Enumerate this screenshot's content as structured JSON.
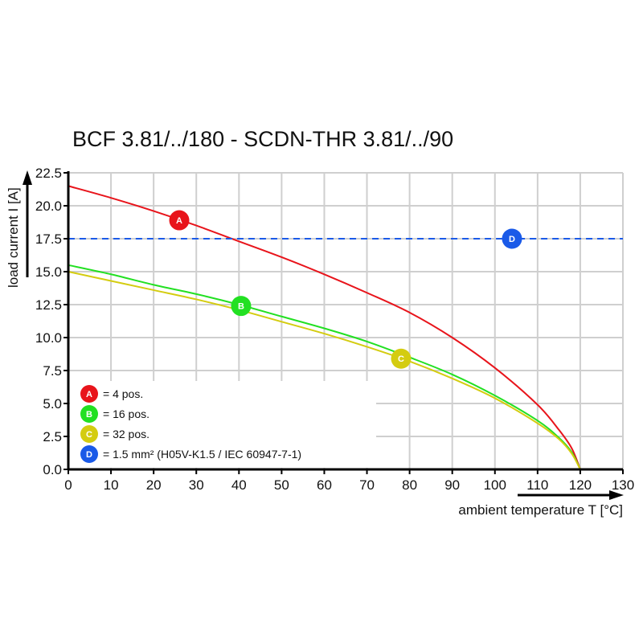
{
  "chart_data": {
    "type": "line",
    "title": "BCF 3.81/../180 - SCDN-THR 3.81/../90",
    "xlabel": "ambient temperature T [°C]",
    "ylabel": "load current I [A]",
    "xlim": [
      0,
      130
    ],
    "ylim": [
      0,
      22.5
    ],
    "xticks": [
      "0",
      "10",
      "20",
      "30",
      "40",
      "50",
      "60",
      "70",
      "80",
      "90",
      "100",
      "110",
      "120",
      "130"
    ],
    "yticks": [
      "0.0",
      "2.5",
      "5.0",
      "7.5",
      "10.0",
      "12.5",
      "15.0",
      "17.5",
      "20.0",
      "22.5"
    ],
    "grid": true,
    "legend_placement": "bottom-left",
    "series": [
      {
        "marker": "A",
        "name": "= 4 pos.",
        "color": "#e8141b",
        "dashed": false,
        "x": [
          0,
          10,
          20,
          30,
          40,
          50,
          60,
          70,
          80,
          90,
          100,
          110,
          115,
          118,
          120
        ],
        "y": [
          21.5,
          20.6,
          19.6,
          18.5,
          17.3,
          16.1,
          14.8,
          13.4,
          11.9,
          10.0,
          7.7,
          4.9,
          3.0,
          1.6,
          0
        ],
        "label_at": [
          26,
          18.9
        ]
      },
      {
        "marker": "B",
        "name": "= 16 pos.",
        "color": "#22e022",
        "dashed": false,
        "x": [
          0,
          10,
          20,
          30,
          40,
          50,
          60,
          70,
          80,
          90,
          100,
          110,
          115,
          118,
          120
        ],
        "y": [
          15.5,
          14.8,
          14.0,
          13.3,
          12.5,
          11.6,
          10.7,
          9.7,
          8.5,
          7.2,
          5.6,
          3.7,
          2.4,
          1.3,
          0
        ],
        "label_at": [
          40.5,
          12.4
        ]
      },
      {
        "marker": "C",
        "name": "= 32 pos.",
        "color": "#d4cc10",
        "dashed": false,
        "x": [
          0,
          10,
          20,
          30,
          40,
          50,
          60,
          70,
          80,
          90,
          100,
          110,
          115,
          118,
          120
        ],
        "y": [
          15.0,
          14.3,
          13.6,
          12.9,
          12.1,
          11.2,
          10.3,
          9.3,
          8.2,
          6.9,
          5.4,
          3.5,
          2.3,
          1.2,
          0
        ],
        "label_at": [
          78,
          8.4
        ]
      },
      {
        "marker": "D",
        "name": "= 1.5 mm² (H05V-K1.5 / IEC 60947-7-1)",
        "color": "#1a5ae8",
        "dashed": true,
        "x": [
          0,
          130
        ],
        "y": [
          17.5,
          17.5
        ],
        "label_at": [
          104,
          17.5
        ]
      }
    ]
  }
}
